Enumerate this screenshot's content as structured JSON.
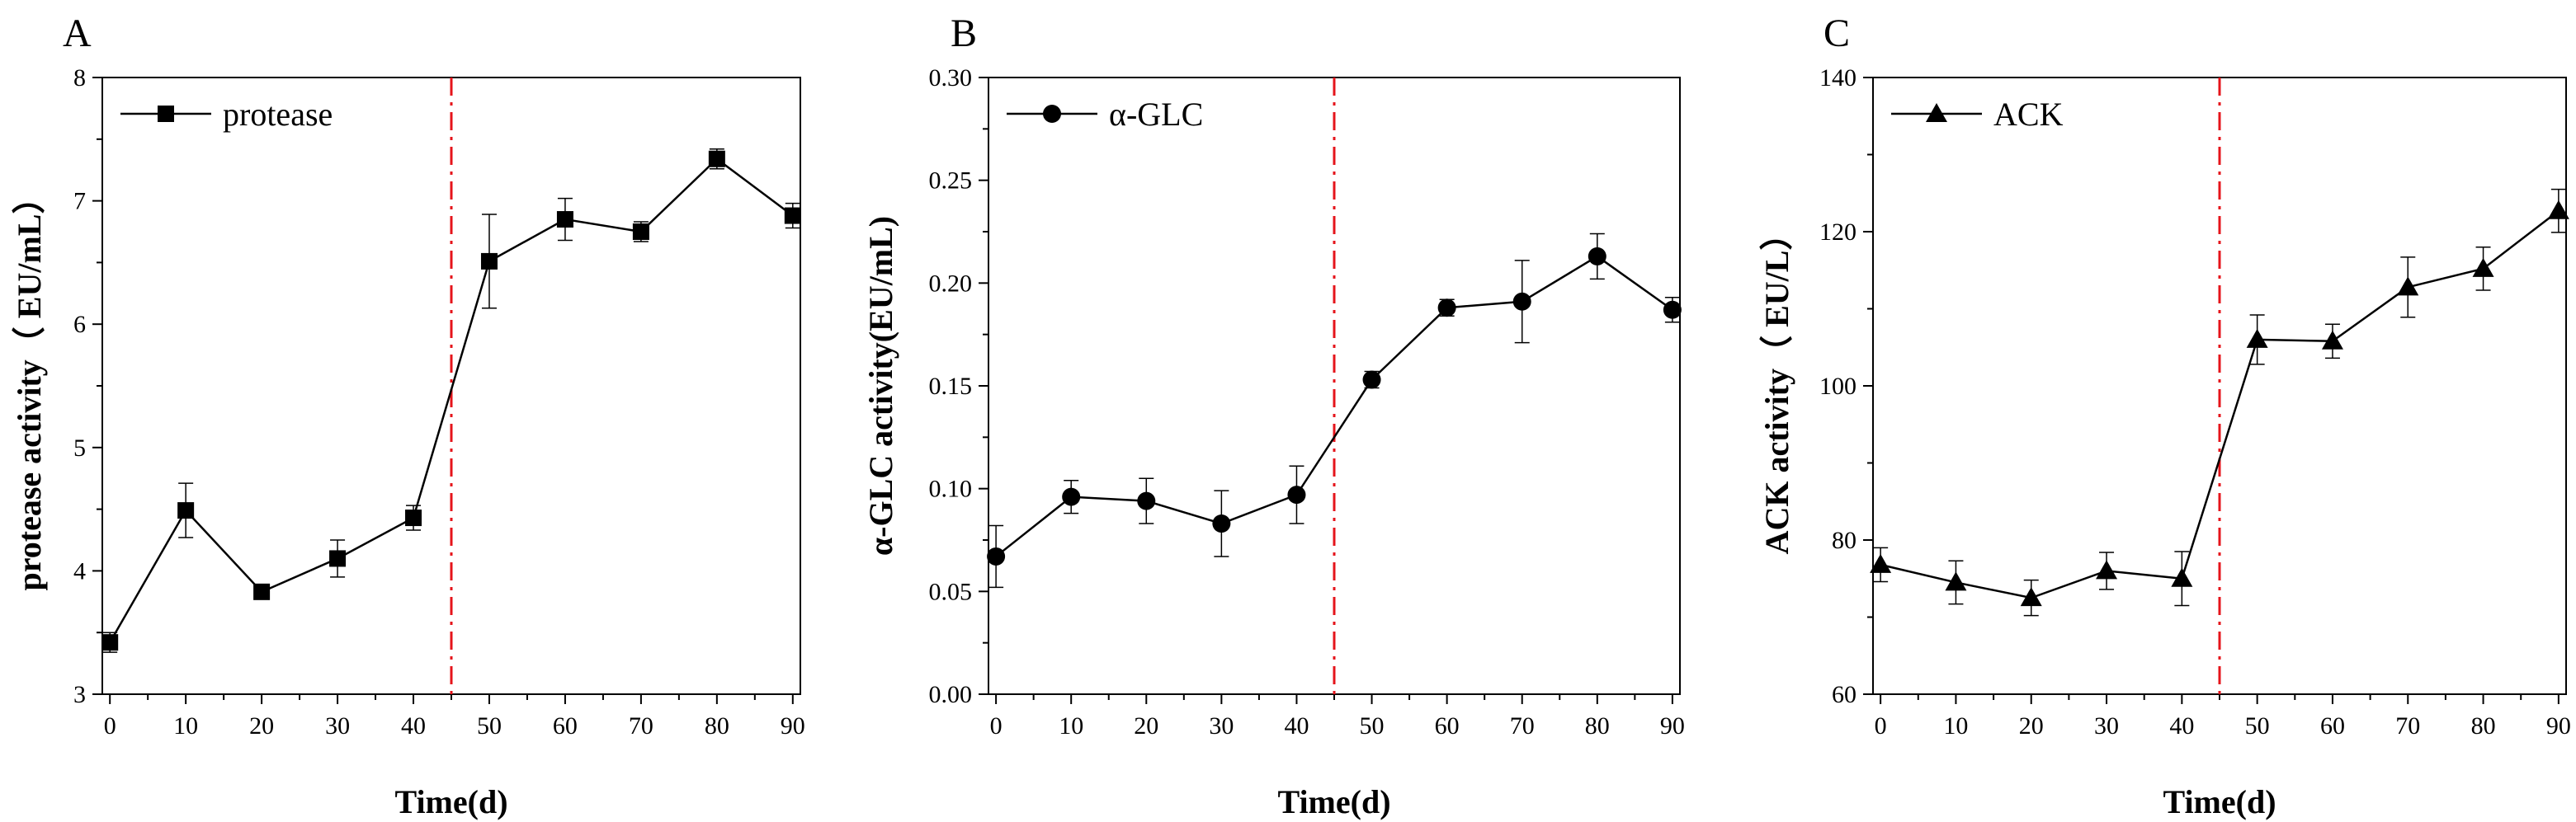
{
  "chart_data": [
    {
      "type": "line",
      "panel_label": "A",
      "x": [
        0,
        10,
        20,
        30,
        40,
        50,
        60,
        70,
        80,
        90
      ],
      "series": [
        {
          "name": "protease",
          "marker": "square",
          "values": [
            3.42,
            4.49,
            3.83,
            4.1,
            4.43,
            6.51,
            6.85,
            6.75,
            7.34,
            6.88
          ],
          "errors": [
            0.08,
            0.22,
            0.05,
            0.15,
            0.1,
            0.38,
            0.17,
            0.08,
            0.08,
            0.1
          ]
        }
      ],
      "xlabel": "Time(d)",
      "ylabel": "protease activity（ EU/mL）",
      "xlim": [
        -1,
        91
      ],
      "ylim": [
        3,
        8
      ],
      "xticks": [
        0,
        10,
        20,
        30,
        40,
        50,
        60,
        70,
        80,
        90
      ],
      "yticks": [
        3,
        4,
        5,
        6,
        7,
        8
      ],
      "ytick_labels": [
        "3",
        "4",
        "5",
        "6",
        "7",
        "8"
      ],
      "vline_x": 45,
      "vline_color": "#e5141b",
      "legend_position": "top-left"
    },
    {
      "type": "line",
      "panel_label": "B",
      "x": [
        0,
        10,
        20,
        30,
        40,
        50,
        60,
        70,
        80,
        90
      ],
      "series": [
        {
          "name": "α-GLC",
          "marker": "circle",
          "values": [
            0.067,
            0.096,
            0.094,
            0.083,
            0.097,
            0.153,
            0.188,
            0.191,
            0.213,
            0.187
          ],
          "errors": [
            0.015,
            0.008,
            0.011,
            0.016,
            0.014,
            0.004,
            0.004,
            0.02,
            0.011,
            0.006
          ]
        }
      ],
      "xlabel": "Time(d)",
      "ylabel": "α-GLC activity(EU/mL)",
      "xlim": [
        -1,
        91
      ],
      "ylim": [
        0,
        0.3
      ],
      "xticks": [
        0,
        10,
        20,
        30,
        40,
        50,
        60,
        70,
        80,
        90
      ],
      "yticks": [
        0,
        0.05,
        0.1,
        0.15,
        0.2,
        0.25,
        0.3
      ],
      "ytick_labels": [
        "0.00",
        "0.05",
        "0.10",
        "0.15",
        "0.20",
        "0.25",
        "0.30"
      ],
      "vline_x": 45,
      "vline_color": "#e5141b",
      "legend_position": "top-left"
    },
    {
      "type": "line",
      "panel_label": "C",
      "x": [
        0,
        10,
        20,
        30,
        40,
        50,
        60,
        70,
        80,
        90
      ],
      "series": [
        {
          "name": "ACK",
          "marker": "triangle",
          "values": [
            76.8,
            74.5,
            72.5,
            76.0,
            75.0,
            106.0,
            105.8,
            112.8,
            115.2,
            122.7
          ],
          "errors": [
            2.2,
            2.8,
            2.3,
            2.4,
            3.5,
            3.2,
            2.2,
            3.9,
            2.8,
            2.8
          ]
        }
      ],
      "xlabel": "Time(d)",
      "ylabel": "ACK activity（ EU/L）",
      "xlim": [
        -1,
        91
      ],
      "ylim": [
        60,
        140
      ],
      "xticks": [
        0,
        10,
        20,
        30,
        40,
        50,
        60,
        70,
        80,
        90
      ],
      "yticks": [
        60,
        80,
        100,
        120,
        140
      ],
      "ytick_labels": [
        "60",
        "80",
        "100",
        "120",
        "140"
      ],
      "vline_x": 45,
      "vline_color": "#e5141b",
      "legend_position": "top-left"
    }
  ]
}
